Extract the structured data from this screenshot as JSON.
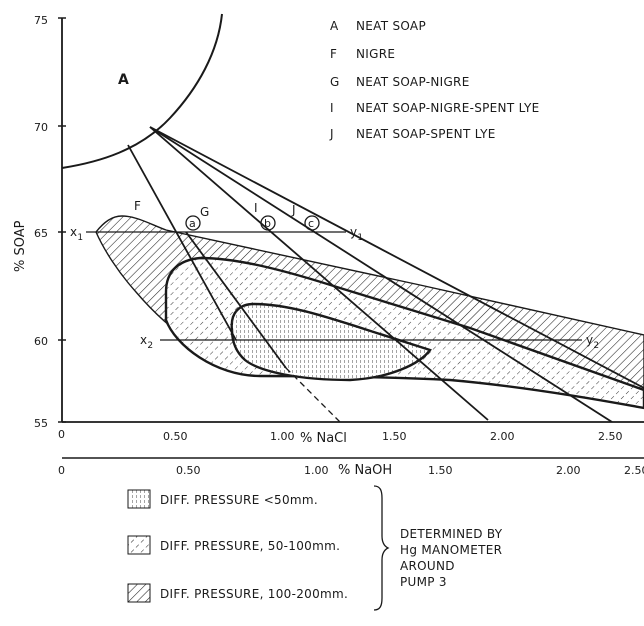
{
  "legend_phases": [
    {
      "code": "A",
      "label": "NEAT SOAP"
    },
    {
      "code": "F",
      "label": "NIGRE"
    },
    {
      "code": "G",
      "label": "NEAT SOAP-NIGRE"
    },
    {
      "code": "I",
      "label": "NEAT SOAP-NIGRE-SPENT LYE"
    },
    {
      "code": "J",
      "label": "NEAT SOAP-SPENT LYE"
    }
  ],
  "y_axis": {
    "label": "% SOAP",
    "ticks": [
      "75",
      "70",
      "65",
      "60",
      "55"
    ]
  },
  "x_axis_nacl": {
    "unit_label": "% NaCl",
    "ticks": [
      "0",
      "0.50",
      "1.00",
      "1.50",
      "2.00",
      "2.50"
    ]
  },
  "x_axis_naoh": {
    "unit_label": "% NaOH",
    "ticks": [
      "0",
      "0.50",
      "1.00",
      "1.50",
      "2.00",
      "2.50"
    ]
  },
  "region_labels": {
    "A": "A",
    "F": "F",
    "G": "G",
    "I": "I",
    "J": "J"
  },
  "point_labels": {
    "a": "a",
    "b": "b",
    "c": "c"
  },
  "line_labels": {
    "x1": "x",
    "x1_sub": "1",
    "y1": "y",
    "y1_sub": "1",
    "x2": "x",
    "x2_sub": "2",
    "y2": "y",
    "y2_sub": "2"
  },
  "pressure_legend": [
    {
      "pattern": "vertical",
      "label": "DIFF. PRESSURE <50mm."
    },
    {
      "pattern": "dashed-diagonal",
      "label": "DIFF. PRESSURE, 50-100mm."
    },
    {
      "pattern": "dense-diagonal",
      "label": "DIFF. PRESSURE, 100-200mm."
    }
  ],
  "determined_note": [
    "DETERMINED BY",
    "Hg MANOMETER",
    "AROUND",
    "PUMP 3"
  ]
}
